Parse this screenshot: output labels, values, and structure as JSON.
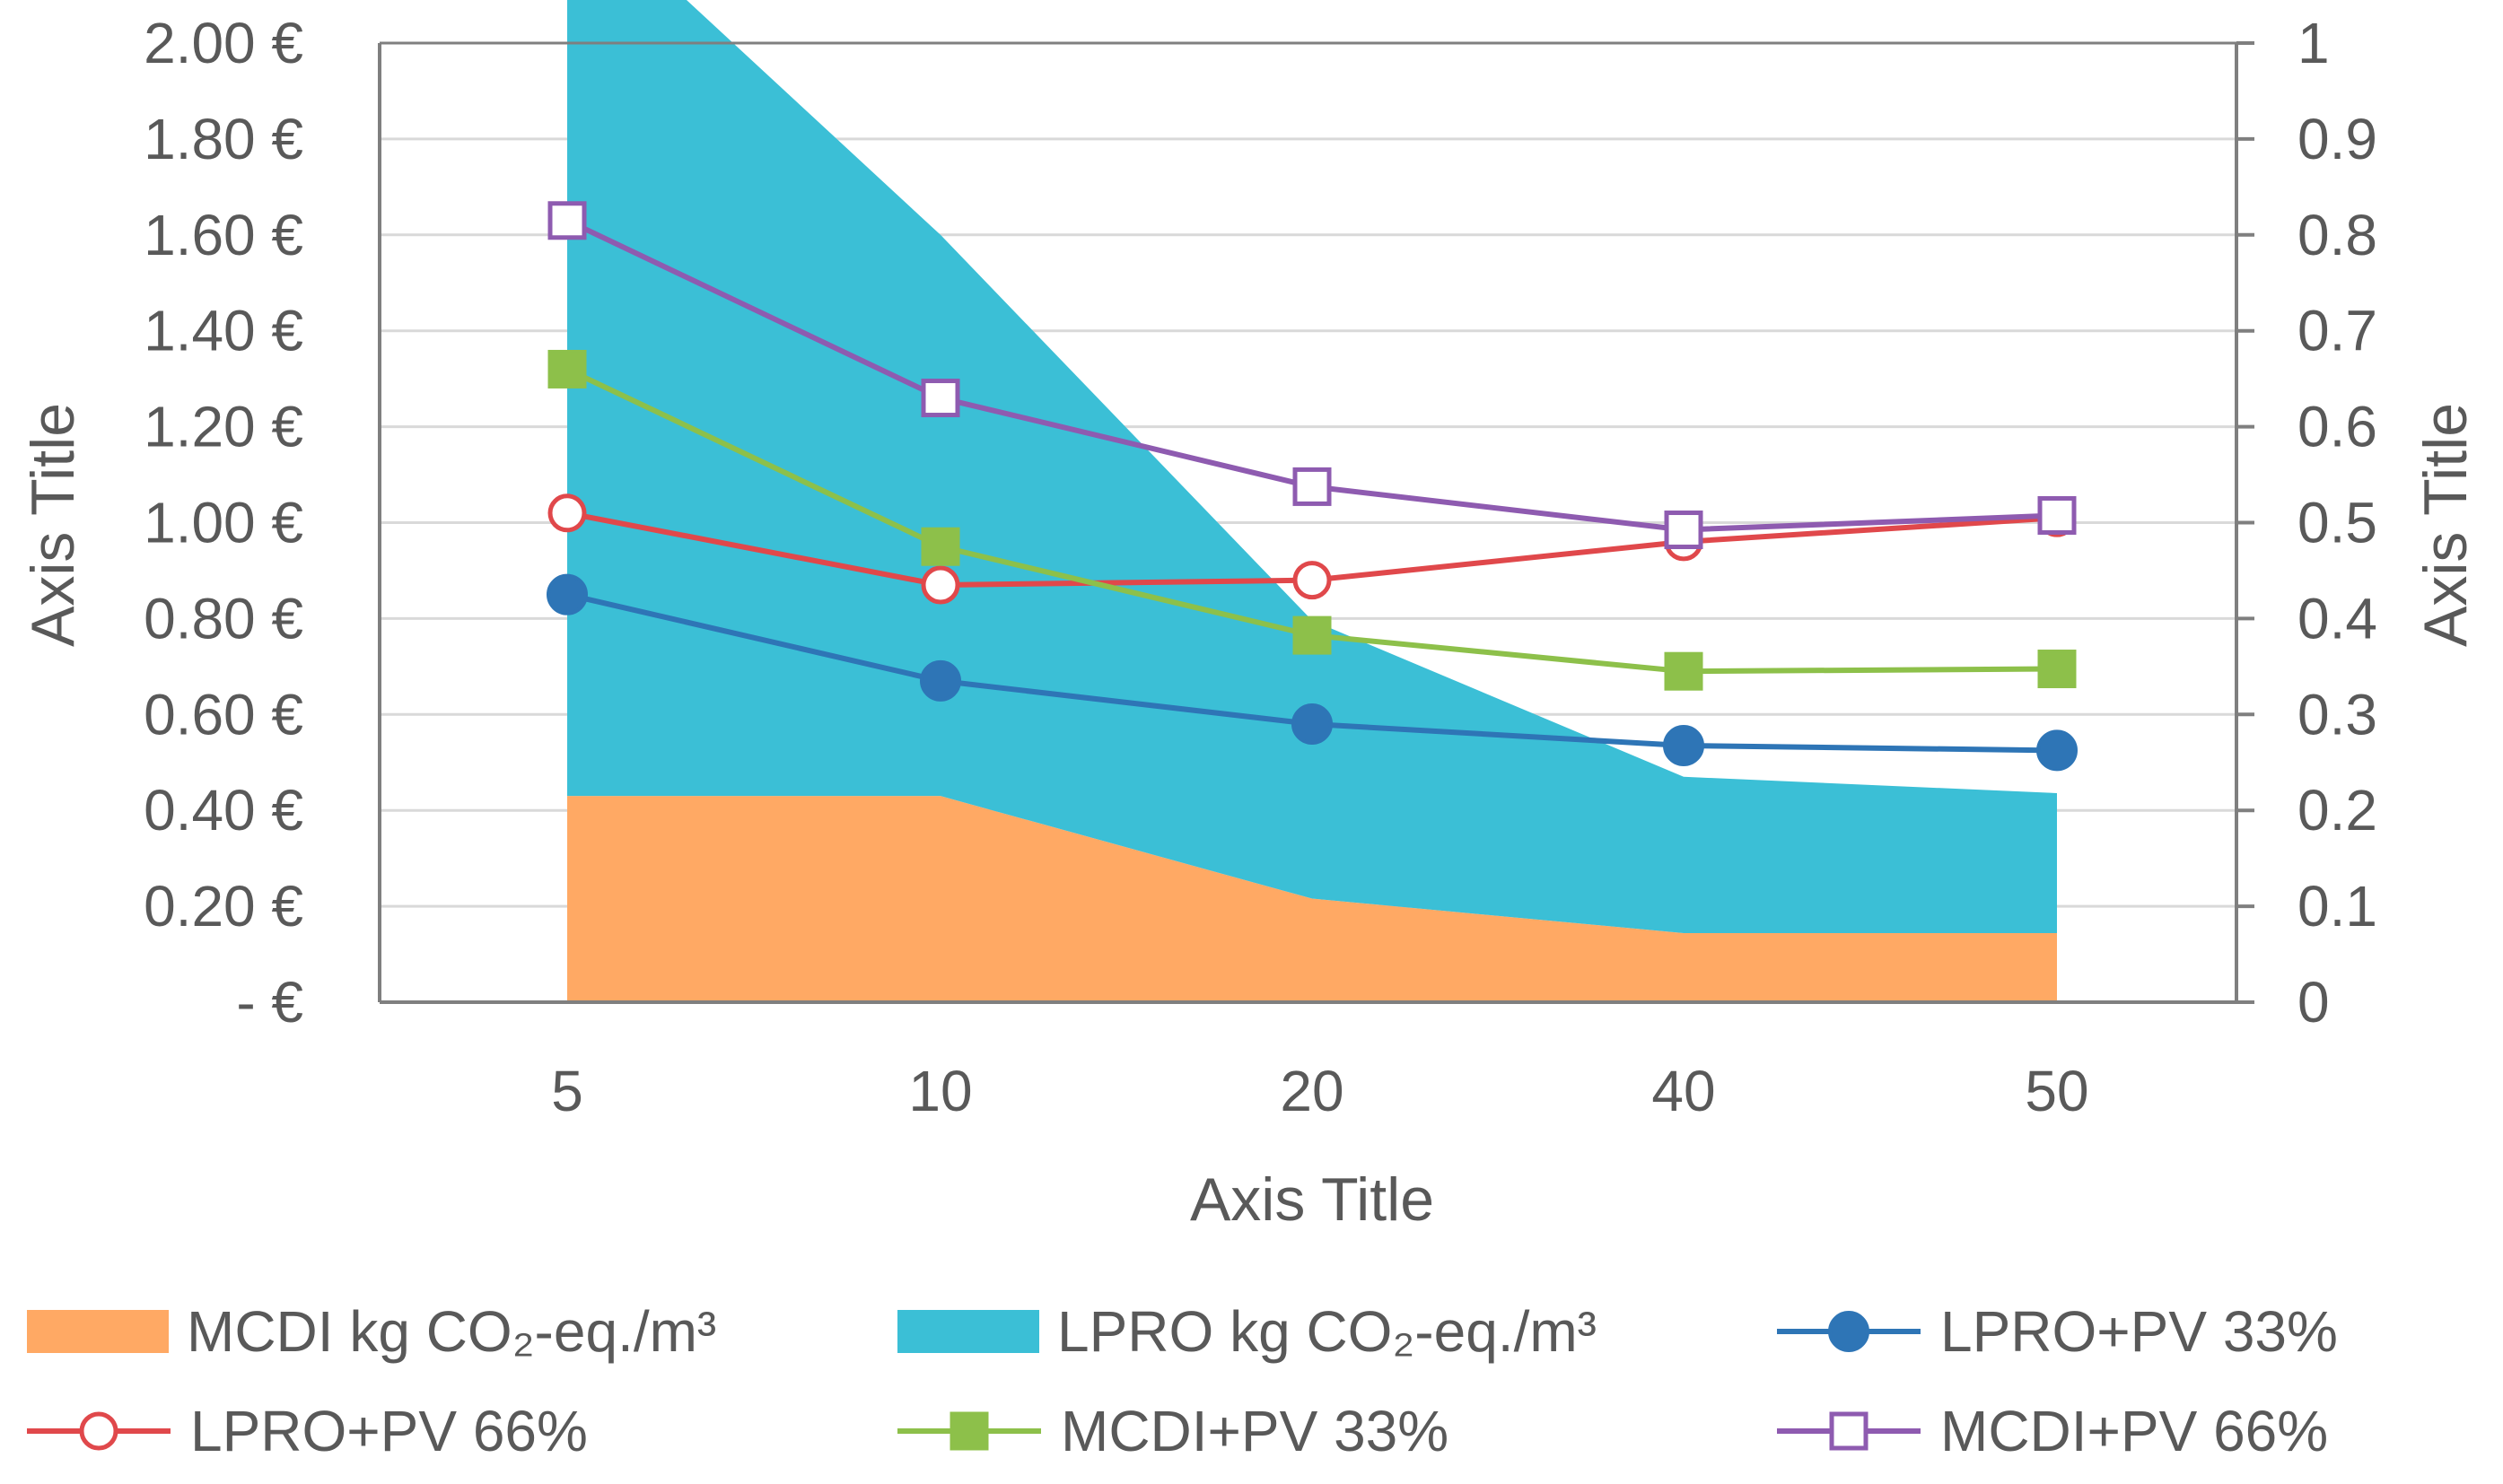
{
  "chart_data": {
    "type": "area+line",
    "categories": [
      "5",
      "10",
      "20",
      "40",
      "50"
    ],
    "x_axis_title": "Axis Title",
    "y_left_title": "Axis Title",
    "y_right_title": "Axis Title",
    "y_left": {
      "min": 0,
      "max": 2.0,
      "step": 0.2,
      "tick_labels": [
        "-   €",
        "0.20 €",
        "0.40 €",
        "0.60 €",
        "0.80 €",
        "1.00 €",
        "1.20 €",
        "1.40 €",
        "1.60 €",
        "1.80 €",
        "2.00 €"
      ]
    },
    "y_right": {
      "min": 0,
      "max": 1.0,
      "step": 0.1,
      "tick_labels": [
        "0",
        "0.1",
        "0.2",
        "0.3",
        "0.4",
        "0.5",
        "0.6",
        "0.7",
        "0.8",
        "0.9",
        "1"
      ]
    },
    "areas": [
      {
        "name": "MCDI kg CO₂-eq./m³",
        "axis": "right",
        "color": "#FFA964",
        "values": [
          0.215,
          0.215,
          0.108,
          0.072,
          0.072
        ]
      },
      {
        "name": "LPRO kg CO₂-eq./m³",
        "axis": "right",
        "color": "#3BBFD6",
        "values": [
          0.945,
          0.585,
          0.29,
          0.163,
          0.146
        ]
      }
    ],
    "lines": [
      {
        "name": "LPRO+PV 33%",
        "axis": "left",
        "color": "#2E75B6",
        "marker": "filled-circle",
        "values": [
          0.85,
          0.67,
          0.58,
          0.535,
          0.525
        ]
      },
      {
        "name": "LPRO+PV 66%",
        "axis": "left",
        "color": "#E0484B",
        "marker": "open-circle",
        "values": [
          1.02,
          0.87,
          0.88,
          0.96,
          1.01
        ]
      },
      {
        "name": "MCDI+PV 33%",
        "axis": "left",
        "color": "#8DC04A",
        "marker": "filled-square",
        "values": [
          1.32,
          0.95,
          0.765,
          0.69,
          0.695
        ]
      },
      {
        "name": "MCDI+PV 66%",
        "axis": "left",
        "color": "#8E5BB0",
        "marker": "open-square",
        "values": [
          1.63,
          1.26,
          1.075,
          0.985,
          1.015
        ]
      }
    ],
    "legend": {
      "position": "bottom",
      "entries": [
        {
          "label": "MCDI kg CO₂-eq./m³",
          "swatch": "area",
          "color": "#FFA964"
        },
        {
          "label": "LPRO kg CO₂-eq./m³",
          "swatch": "area",
          "color": "#3BBFD6"
        },
        {
          "label": "LPRO+PV 33%",
          "swatch": "filled-circle",
          "color": "#2E75B6"
        },
        {
          "label": "LPRO+PV 66%",
          "swatch": "open-circle",
          "color": "#E0484B"
        },
        {
          "label": "MCDI+PV 33%",
          "swatch": "filled-square",
          "color": "#8DC04A"
        },
        {
          "label": "MCDI+PV 66%",
          "swatch": "open-square",
          "color": "#8E5BB0"
        }
      ]
    },
    "grid": true,
    "colors": {
      "axis": "#7F7F7F",
      "grid": "#D9D9D9",
      "text": "#595959"
    }
  }
}
